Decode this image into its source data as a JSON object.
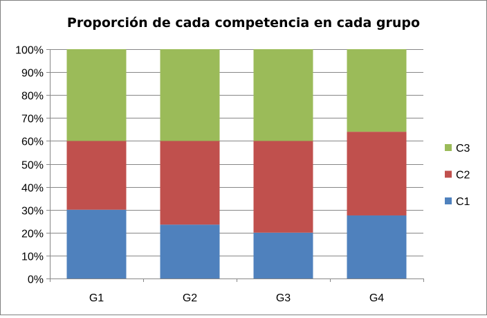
{
  "chart_data": {
    "type": "bar",
    "stacked": true,
    "normalized": true,
    "title": "Proporción de cada competencia en cada grupo",
    "xlabel": "",
    "ylabel": "",
    "categories": [
      "G1",
      "G2",
      "G3",
      "G4"
    ],
    "series": [
      {
        "name": "C1",
        "color": "#4f81bd",
        "values": [
          30,
          23.5,
          20,
          27.5
        ]
      },
      {
        "name": "C2",
        "color": "#c0504d",
        "values": [
          30,
          36.5,
          40,
          36.5
        ]
      },
      {
        "name": "C3",
        "color": "#9bbb59",
        "values": [
          40,
          40,
          40,
          36
        ]
      }
    ],
    "ylim": [
      0,
      100
    ],
    "yticks": [
      0,
      10,
      20,
      30,
      40,
      50,
      60,
      70,
      80,
      90,
      100
    ],
    "ytick_labels": [
      "0%",
      "10%",
      "20%",
      "30%",
      "40%",
      "50%",
      "60%",
      "70%",
      "80%",
      "90%",
      "100%"
    ],
    "grid": true,
    "legend_position": "right"
  }
}
